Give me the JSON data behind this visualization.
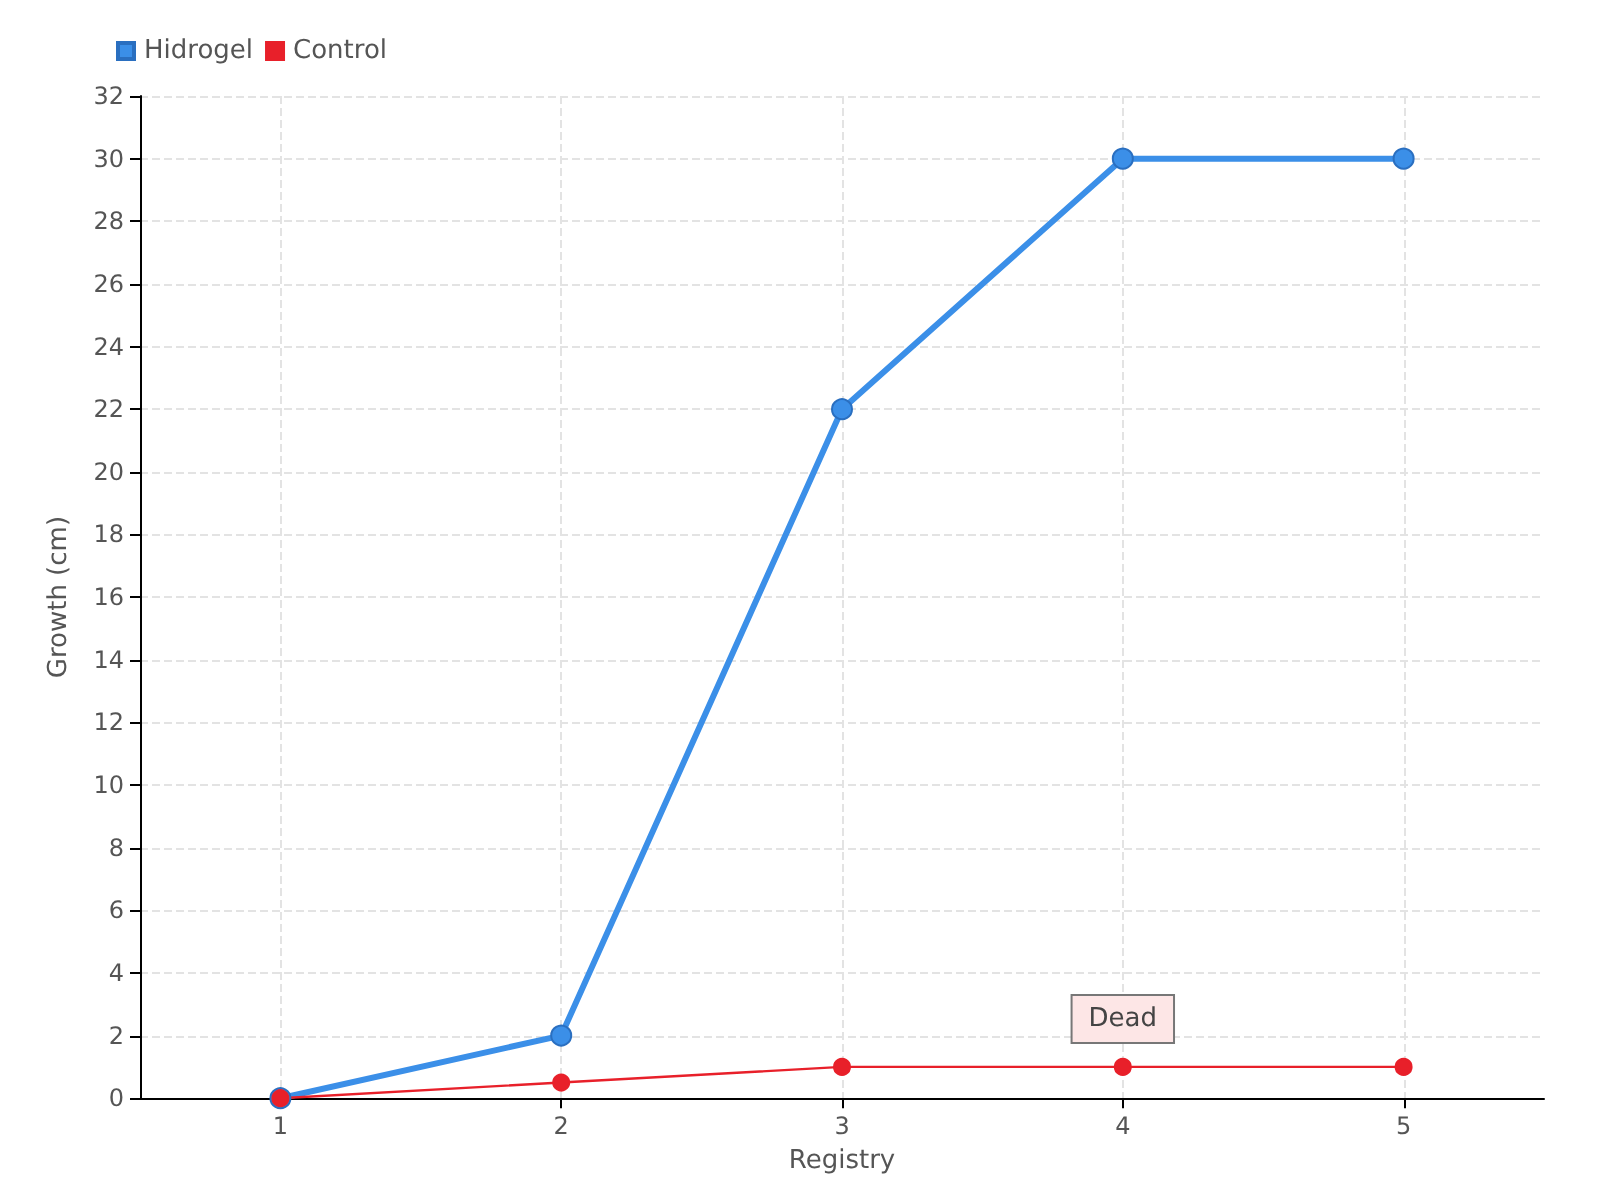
{
  "chart_data": {
    "type": "line",
    "xlabel": "Registry",
    "ylabel": "Growth (cm)",
    "x": [
      1,
      2,
      3,
      4,
      5
    ],
    "xlim": [
      0.5,
      5.5
    ],
    "xticks": [
      1,
      2,
      3,
      4,
      5
    ],
    "ylim": [
      0,
      32
    ],
    "yticks": [
      0,
      2,
      4,
      6,
      8,
      10,
      12,
      14,
      16,
      18,
      20,
      22,
      24,
      26,
      28,
      30,
      32
    ],
    "series": [
      {
        "name": "Hidrogel",
        "color": "#3b8fe8",
        "values": [
          0,
          2,
          22,
          30,
          30
        ]
      },
      {
        "name": "Control",
        "color": "#e8202a",
        "values": [
          0,
          0.5,
          1,
          1,
          1
        ]
      }
    ],
    "annotations": [
      {
        "text": "Dead",
        "x": 4,
        "y": 1
      }
    ],
    "grid": true,
    "legend": "top left",
    "marker": "circle",
    "line_style": "solid"
  }
}
